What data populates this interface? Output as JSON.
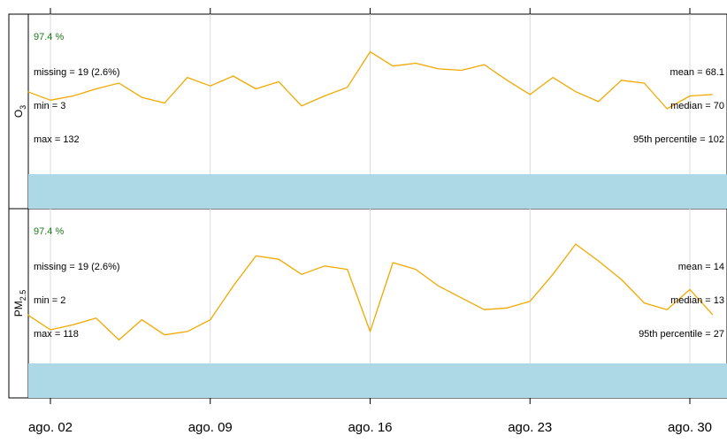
{
  "chart_data": {
    "type": "line",
    "x_tick_labels": [
      "ago. 02",
      "ago. 09",
      "ago. 16",
      "ago. 23",
      "ago. 30"
    ],
    "x_tick_days": [
      2,
      9,
      16,
      23,
      30
    ],
    "xlim_days": [
      1,
      31
    ],
    "grid": "vertical",
    "line_color": "#f2a800",
    "bar_color": "#add8e6",
    "pct_color": "#1a7a1a",
    "panels": [
      {
        "label_main": "O",
        "label_sub": "3",
        "percent": "97.4 %",
        "missing": "missing = 19 (2.6%)",
        "min": "min = 3",
        "max": "max = 132",
        "mean": "mean = 68.1",
        "median": "median = 70",
        "p95": "95th percentile = 102",
        "ylim": [
          20,
          130
        ],
        "series": {
          "x": [
            1,
            2,
            3,
            4,
            5,
            6,
            7,
            8,
            9,
            10,
            11,
            12,
            13,
            14,
            15,
            16,
            17,
            18,
            19,
            20,
            21,
            22,
            23,
            24,
            25,
            26,
            27,
            28,
            29,
            30,
            31
          ],
          "y": [
            78,
            72,
            75,
            80,
            84,
            74,
            70,
            88,
            82,
            89,
            80,
            85,
            68,
            75,
            81,
            106,
            96,
            98,
            94,
            93,
            97,
            86,
            76,
            88,
            78,
            71,
            86,
            84,
            66,
            75,
            76
          ]
        }
      },
      {
        "label_main": "PM",
        "label_sub": "2.5",
        "percent": "97.4 %",
        "missing": "missing = 19 (2.6%)",
        "min": "min = 2",
        "max": "max = 118",
        "mean": "mean = 14",
        "median": "median = 13",
        "p95": "95th percentile = 27",
        "ylim": [
          0,
          45
        ],
        "series": {
          "x": [
            1,
            2,
            3,
            4,
            5,
            6,
            7,
            8,
            9,
            10,
            11,
            12,
            13,
            14,
            15,
            16,
            17,
            18,
            19,
            20,
            21,
            22,
            23,
            24,
            25,
            26,
            27,
            28,
            29,
            30,
            31
          ],
          "y": [
            14.5,
            10,
            11.5,
            13.5,
            7,
            13,
            8.5,
            9.5,
            13,
            23,
            32,
            31,
            26.5,
            29,
            28,
            9.5,
            30,
            28,
            23,
            19.5,
            16,
            16.5,
            18.5,
            26.5,
            35.5,
            30.5,
            25,
            18,
            16,
            22,
            14.5
          ]
        }
      }
    ]
  }
}
